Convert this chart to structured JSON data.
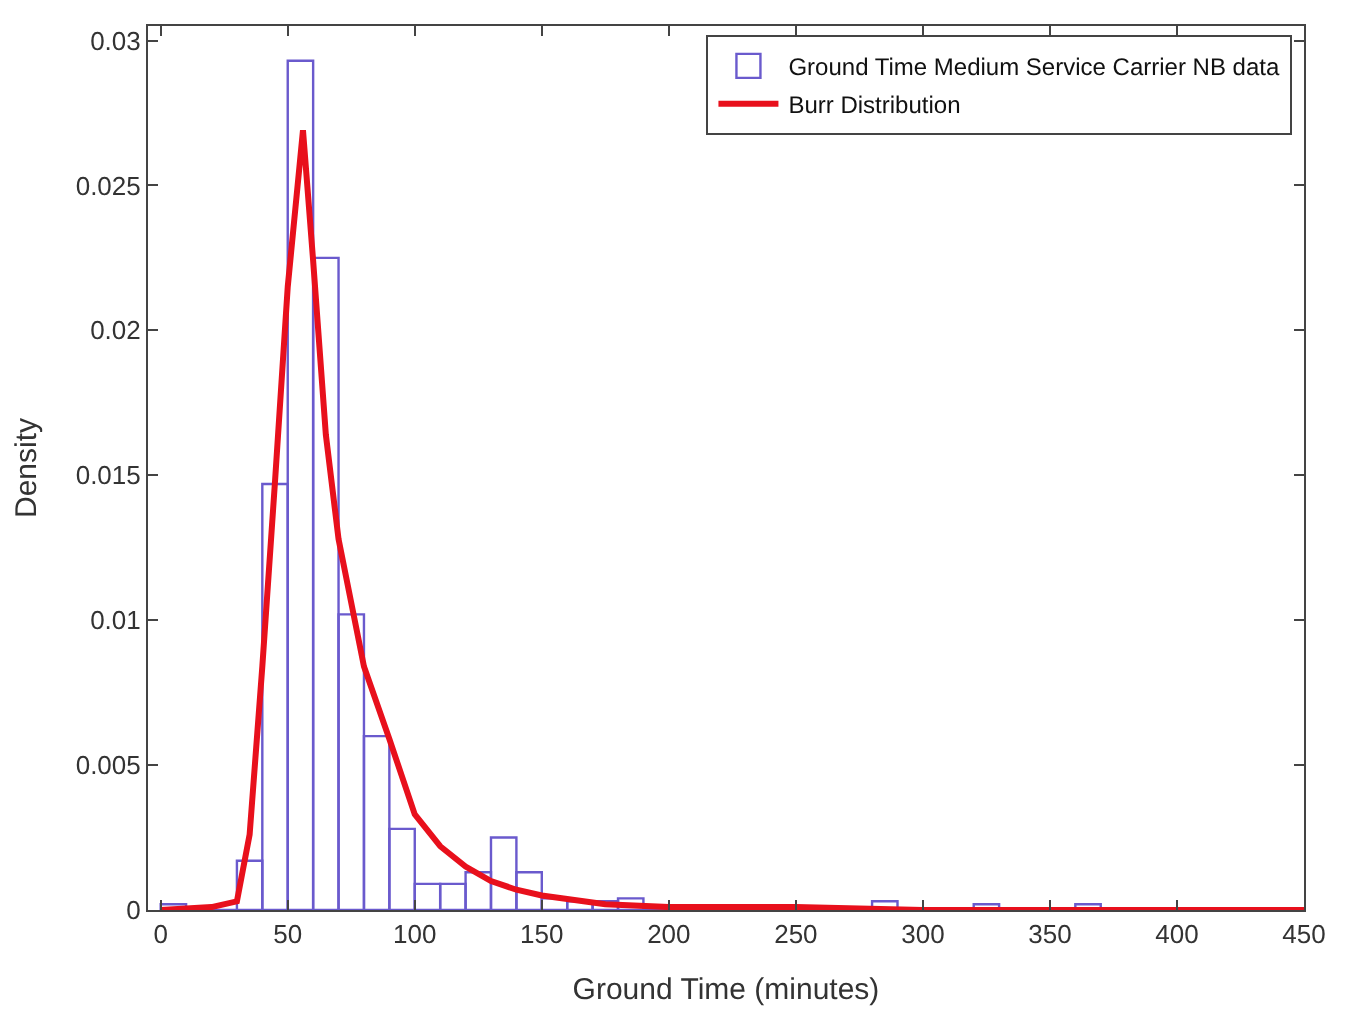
{
  "chart_data": {
    "type": "histogram",
    "xlabel": "Ground Time (minutes)",
    "ylabel": "Density",
    "bins": [
      0,
      10,
      20,
      30,
      40,
      50,
      60,
      70,
      80,
      90,
      100,
      110,
      120,
      130,
      140,
      150,
      160,
      170,
      180,
      190,
      200,
      210,
      220,
      230,
      240,
      250,
      260,
      270,
      280,
      290,
      300,
      310,
      320,
      330,
      340,
      350,
      360,
      370,
      380,
      390,
      400,
      410,
      420,
      430,
      440,
      450
    ],
    "series": [
      {
        "name": "Ground Time Medium Service Carrier NB data",
        "color": "#6a5acd",
        "values": [
          0.0002,
          0,
          0,
          0.0017,
          0.0147,
          0.0293,
          0.0225,
          0.0102,
          0.006,
          0.0028,
          0.0009,
          0.0009,
          0.0013,
          0.0025,
          0.0013,
          0.0004,
          0.0003,
          0.0003,
          0.0004,
          0,
          0,
          0,
          0,
          0,
          0,
          0,
          0,
          0,
          0.0003,
          0,
          0,
          0,
          0.0002,
          0,
          0,
          0,
          0.0002,
          0,
          0,
          0,
          0,
          0,
          0,
          0,
          0
        ]
      },
      {
        "name": "Burr Distribution",
        "type": "line",
        "color": "#e8101c",
        "x": [
          0,
          20,
          30,
          35,
          40,
          45,
          50,
          56,
          60,
          65,
          70,
          80,
          90,
          100,
          110,
          120,
          130,
          140,
          150,
          175,
          200,
          250,
          300,
          450
        ],
        "values": [
          0,
          0.0001,
          0.0003,
          0.0026,
          0.0084,
          0.0148,
          0.0215,
          0.0269,
          0.0224,
          0.0164,
          0.0128,
          0.0084,
          0.0059,
          0.0033,
          0.0022,
          0.0015,
          0.001,
          0.0007,
          0.0005,
          0.0002,
          0.0001,
          0.0001,
          0,
          0
        ]
      }
    ],
    "xlim": [
      -5,
      450
    ],
    "ylim": [
      0,
      0.0305
    ],
    "xticks": [
      0,
      50,
      100,
      150,
      200,
      250,
      300,
      350,
      400,
      450
    ],
    "yticks": [
      0,
      0.005,
      0.01,
      0.015,
      0.02,
      0.025,
      0.03
    ],
    "legend": "top right",
    "marker": "none",
    "line_style": "solid"
  }
}
